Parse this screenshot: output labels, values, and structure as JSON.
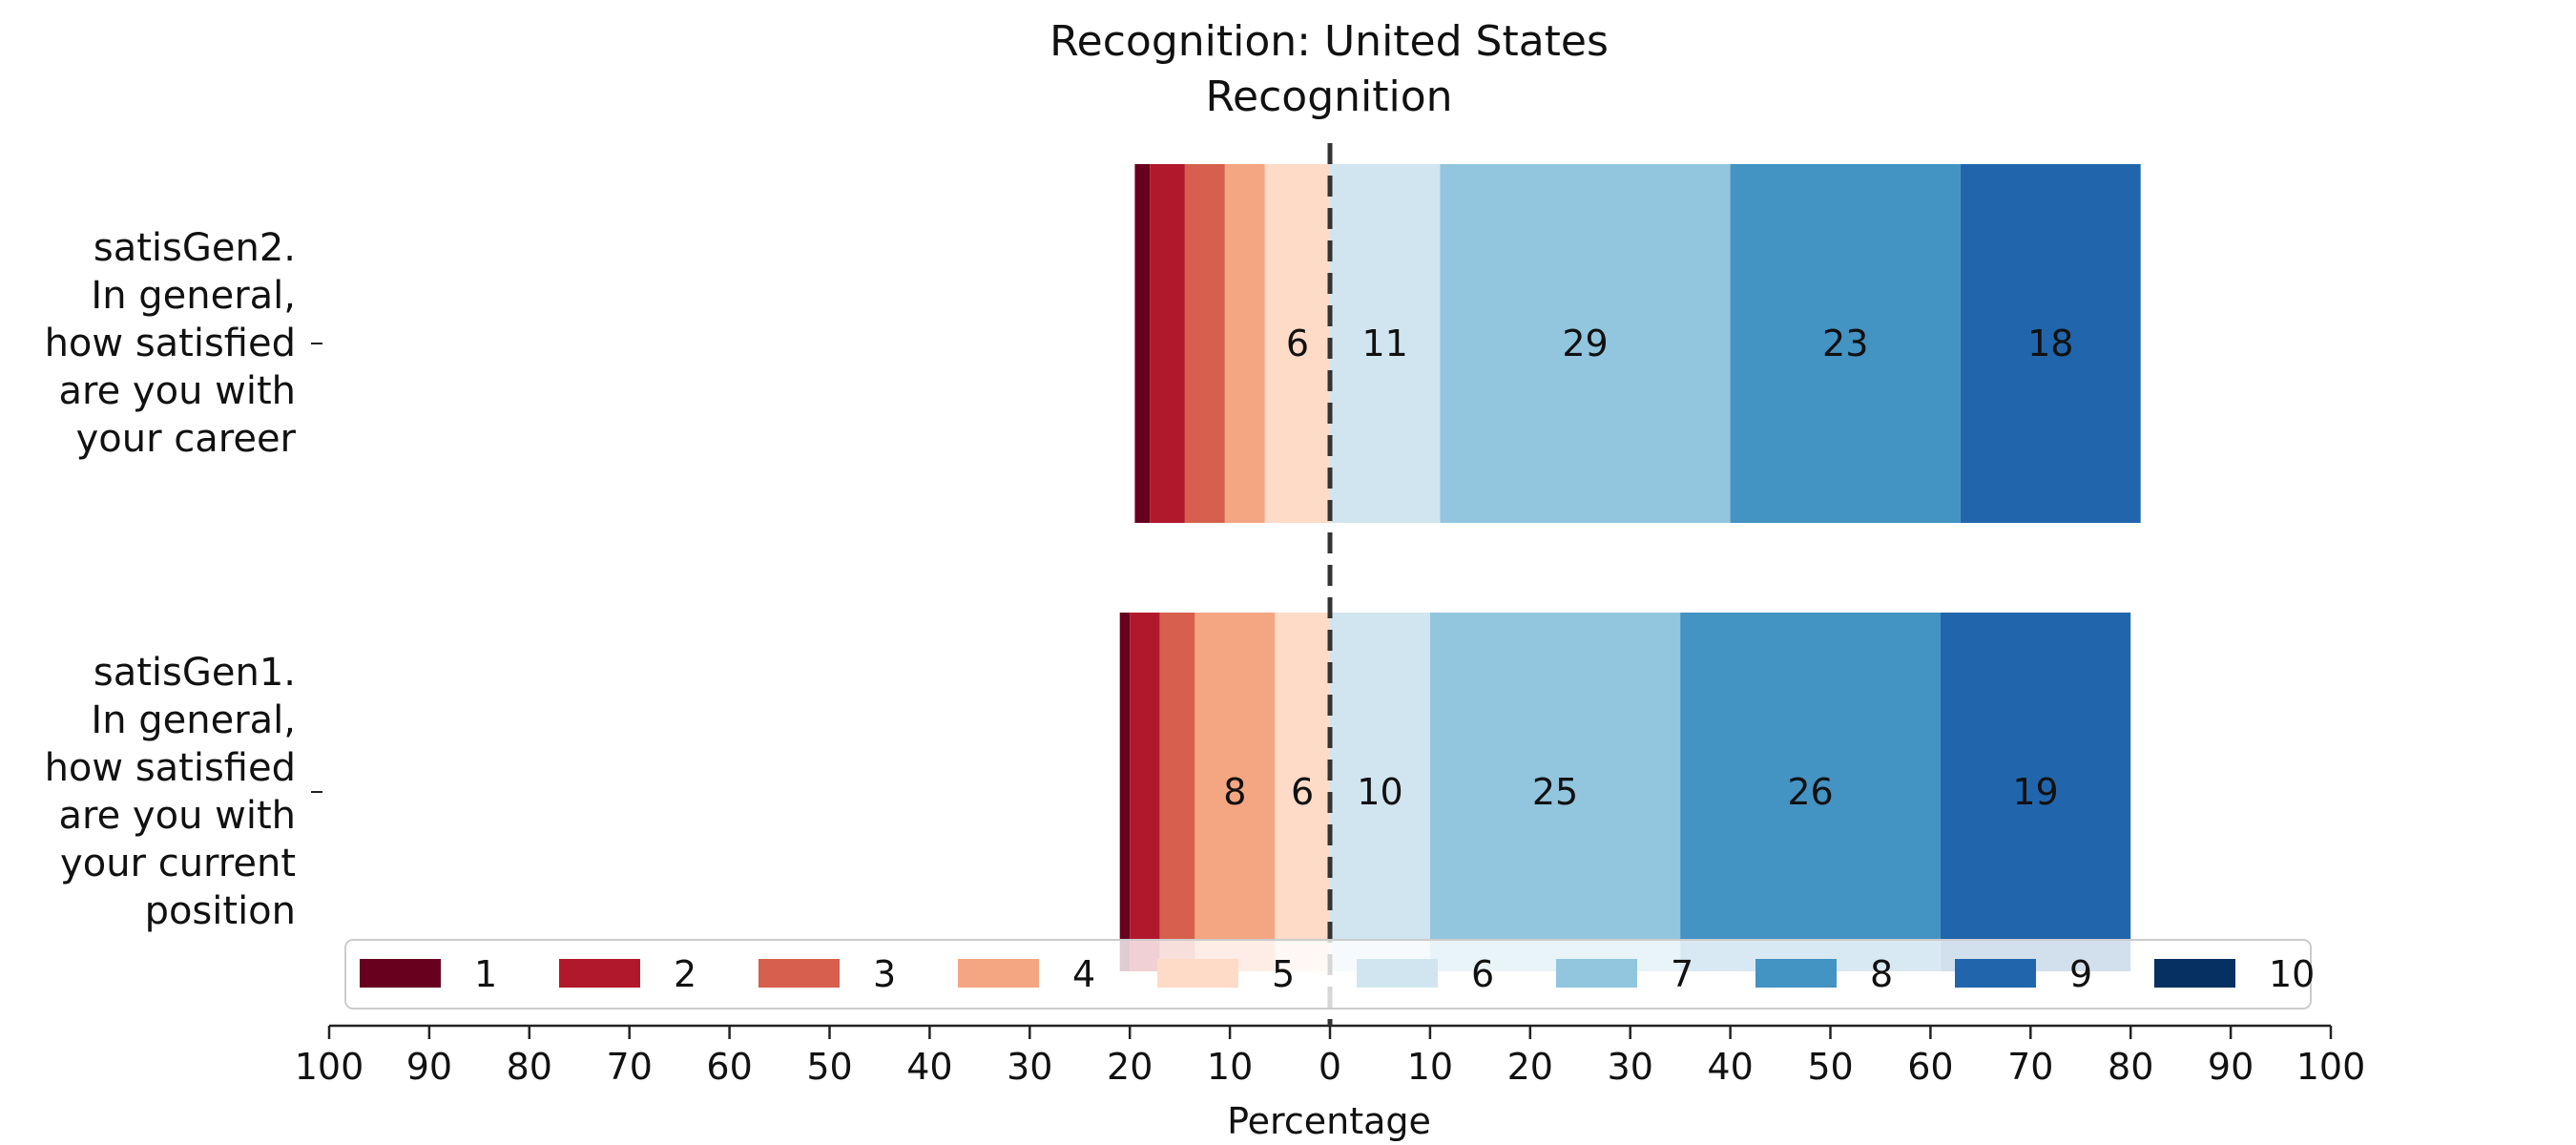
{
  "chart_data": {
    "type": "bar",
    "orientation": "horizontal-diverging-stacked",
    "title": "Recognition: United States",
    "subtitle": "Recognition",
    "xlabel": "Percentage",
    "xlim": [
      -100,
      100
    ],
    "xticks": [
      -100,
      -90,
      -80,
      -70,
      -60,
      -50,
      -40,
      -30,
      -20,
      -10,
      0,
      10,
      20,
      30,
      40,
      50,
      60,
      70,
      80,
      90,
      100
    ],
    "xtick_labels": [
      "100",
      "90",
      "80",
      "70",
      "60",
      "50",
      "40",
      "30",
      "20",
      "10",
      "0",
      "10",
      "20",
      "30",
      "40",
      "50",
      "60",
      "70",
      "80",
      "90",
      "100"
    ],
    "categories": [
      [
        "satisGen2.",
        "In general,",
        "how satisfied",
        "are you with",
        "your career"
      ],
      [
        "satisGen1.",
        "In general,",
        "how satisfied",
        "are you with",
        "your current",
        "position"
      ]
    ],
    "legend_placement": "bottom-center",
    "center_line": "dashed",
    "series": [
      {
        "name": "1",
        "color": "#67001f",
        "values": [
          1.5,
          1.0
        ]
      },
      {
        "name": "2",
        "color": "#b2182b",
        "values": [
          3.5,
          3.0
        ]
      },
      {
        "name": "3",
        "color": "#d6604d",
        "values": [
          4.0,
          3.5
        ]
      },
      {
        "name": "4",
        "color": "#f4a582",
        "values": [
          4.0,
          8.0
        ]
      },
      {
        "name": "5",
        "color": "#fddbc7",
        "values": [
          6.5,
          5.5
        ]
      },
      {
        "name": "6",
        "color": "#d1e5f0",
        "values": [
          11.0,
          10.0
        ]
      },
      {
        "name": "7",
        "color": "#92c5de",
        "values": [
          29.0,
          25.0
        ]
      },
      {
        "name": "8",
        "color": "#4393c3",
        "values": [
          23.0,
          26.0
        ]
      },
      {
        "name": "9",
        "color": "#2166ac",
        "values": [
          18.0,
          19.0
        ]
      },
      {
        "name": "10",
        "color": "#053061",
        "values": [
          0.0,
          0.0
        ]
      }
    ],
    "data_labels": [
      [
        "",
        "",
        "",
        "",
        "6",
        "11",
        "29",
        "23",
        "18",
        ""
      ],
      [
        "",
        "",
        "",
        "8",
        "6",
        "10",
        "25",
        "26",
        "19",
        ""
      ]
    ]
  }
}
